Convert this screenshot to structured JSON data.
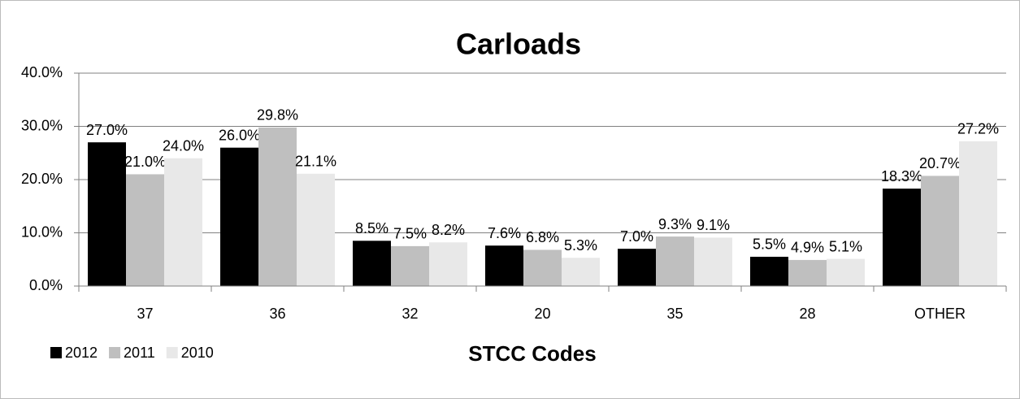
{
  "chart_data": {
    "type": "bar",
    "title": "Carloads",
    "x_label": "STCC Codes",
    "categories": [
      "37",
      "36",
      "32",
      "20",
      "35",
      "28",
      "OTHER"
    ],
    "series": [
      {
        "name": "2012",
        "color": "#000000",
        "values": [
          27.0,
          26.0,
          8.5,
          7.6,
          7.0,
          5.5,
          18.3
        ],
        "value_labels": [
          "27.0%",
          "26.0%",
          "8.5%",
          "7.6%",
          "7.0%",
          "5.5%",
          "18.3%"
        ]
      },
      {
        "name": "2011",
        "color": "#bfbfbf",
        "values": [
          21.0,
          29.8,
          7.5,
          6.8,
          9.3,
          4.9,
          20.7
        ],
        "value_labels": [
          "21.0%",
          "29.8%",
          "7.5%",
          "6.8%",
          "9.3%",
          "4.9%",
          "20.7%"
        ]
      },
      {
        "name": "2010",
        "color": "#e8e8e8",
        "values": [
          24.0,
          21.1,
          8.2,
          5.3,
          9.1,
          5.1,
          27.2
        ],
        "value_labels": [
          "24.0%",
          "21.1%",
          "8.2%",
          "5.3%",
          "9.1%",
          "5.1%",
          "27.2%"
        ]
      }
    ],
    "ylim": [
      0,
      40
    ],
    "yticks": [
      {
        "value": 0,
        "label": "0.0%"
      },
      {
        "value": 10,
        "label": "10.0%"
      },
      {
        "value": 20,
        "label": "20.0%"
      },
      {
        "value": 30,
        "label": "30.0%"
      },
      {
        "value": 40,
        "label": "40.0%"
      }
    ],
    "grid": true,
    "legend": "bottom-left"
  }
}
